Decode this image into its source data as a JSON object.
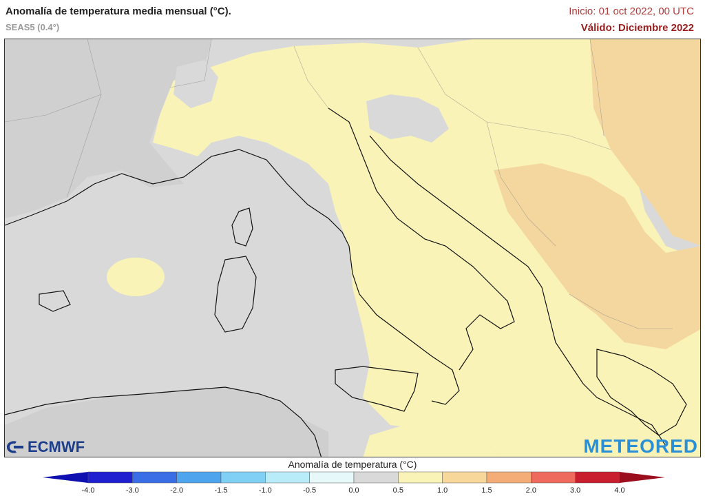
{
  "header": {
    "title": "Anomalía de temperatura media mensual (°C).",
    "subtitle": "SEAS5 (0.4°)",
    "init": "Inicio: 01 oct 2022, 00 UTC",
    "valid": "Válido: Diciembre 2022"
  },
  "logos": {
    "left": "ECMWF",
    "right": "METEORED"
  },
  "legend": {
    "title": "Anomalía de temperatura (°C)",
    "ticks": [
      "-4.0",
      "-3.0",
      "-2.0",
      "-1.5",
      "-1.0",
      "-0.5",
      "0.0",
      "0.5",
      "1.0",
      "1.5",
      "2.0",
      "3.0",
      "4.0"
    ],
    "colors": [
      "#2020d0",
      "#3a6ee6",
      "#4fa4ee",
      "#7fd0f4",
      "#b8ecf8",
      "#e6f8fa",
      "#d9d9d9",
      "#f9f3b8",
      "#f7d79a",
      "#f4ad76",
      "#ee6a5c",
      "#c81e2e"
    ],
    "end_low": "#1010b0",
    "end_high": "#9a0e1e"
  },
  "map_colors": {
    "sea_neutral": "#d9d9d9",
    "land_neutral": "#d2d2d2",
    "anom_0_5_1": "#f9f3b8",
    "anom_1_1_5": "#f4d79e",
    "border": "#888888",
    "coast": "#111111"
  }
}
